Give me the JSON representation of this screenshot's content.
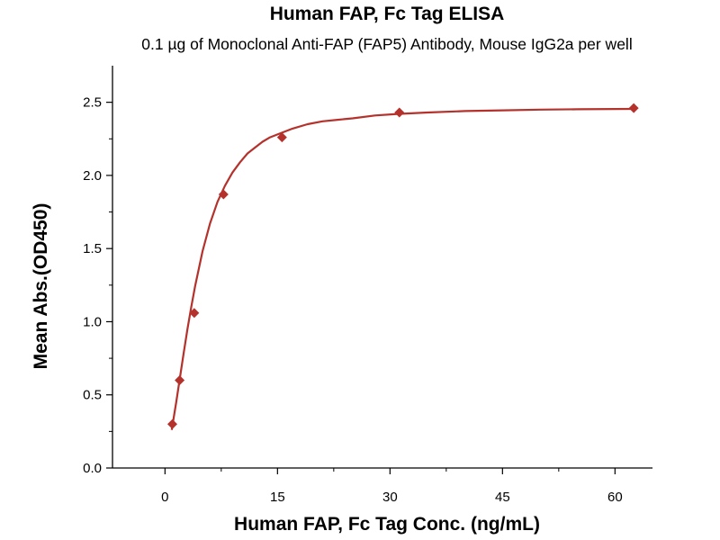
{
  "chart_data": {
    "type": "scatter",
    "title": "Human FAP, Fc Tag ELISA",
    "subtitle": "0.1 µg of Monoclonal Anti-FAP (FAP5) Antibody, Mouse IgG2a per well",
    "xlabel": "Human FAP, Fc Tag Conc. (ng/mL)",
    "ylabel": "Mean Abs.(OD450)",
    "xlim": [
      -7,
      65
    ],
    "ylim": [
      0,
      2.75
    ],
    "xticks": [
      "0",
      "15",
      "30",
      "45",
      "60"
    ],
    "yticks": [
      "0.0",
      "0.5",
      "1.0",
      "1.5",
      "2.0",
      "2.5"
    ],
    "grid": false,
    "legend": "none",
    "colors": {
      "series": "#b5322c"
    },
    "series": [
      {
        "x": [
          0.98,
          1.95,
          3.9,
          7.8,
          15.6,
          31.25,
          62.5
        ],
        "y": [
          0.3,
          0.6,
          1.06,
          1.87,
          2.26,
          2.43,
          2.46
        ]
      }
    ],
    "fit_curve": {
      "x": [
        0.9,
        1.5,
        2,
        2.5,
        3,
        3.5,
        4,
        5,
        6,
        7,
        8,
        9,
        10,
        11,
        12,
        13,
        14,
        15,
        17,
        19,
        21,
        23,
        25,
        28,
        31,
        35,
        40,
        45,
        50,
        55,
        62.5
      ],
      "y": [
        0.26,
        0.45,
        0.62,
        0.79,
        0.95,
        1.1,
        1.24,
        1.48,
        1.67,
        1.82,
        1.93,
        2.02,
        2.09,
        2.15,
        2.19,
        2.23,
        2.26,
        2.28,
        2.32,
        2.35,
        2.37,
        2.38,
        2.39,
        2.41,
        2.42,
        2.43,
        2.44,
        2.445,
        2.45,
        2.452,
        2.455
      ]
    }
  }
}
